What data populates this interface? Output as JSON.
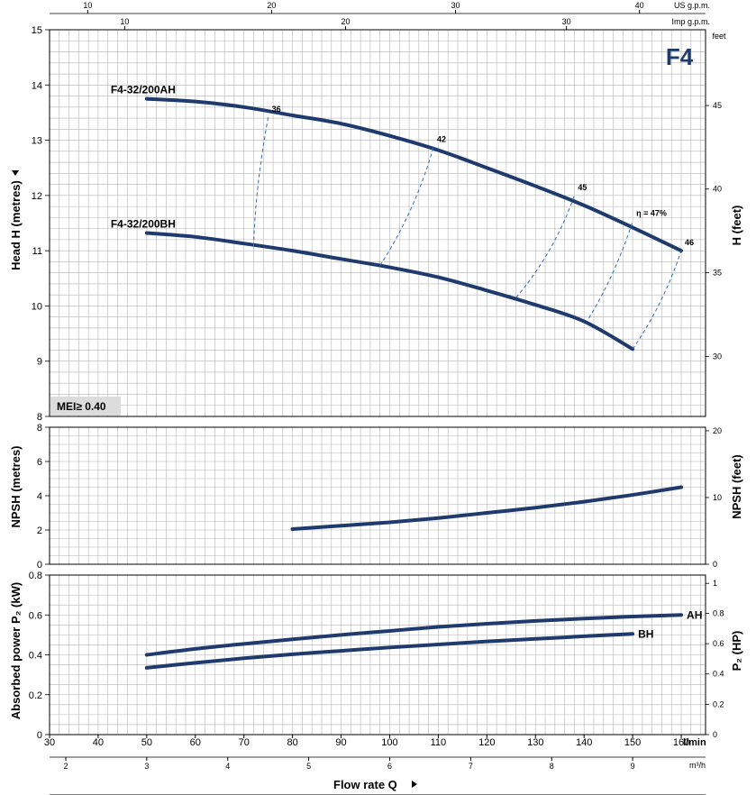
{
  "chart_data": [
    {
      "type": "line",
      "panel": "head",
      "model_label": "F4",
      "ylabel": "Head H  (metres)",
      "ylabel_right": "H  (feet)",
      "right_unit": "feet",
      "ylim": [
        8,
        15
      ],
      "yticks": [
        "8",
        "9",
        "10",
        "11",
        "12",
        "13",
        "14",
        "15"
      ],
      "yticks_right": [
        "30",
        "35",
        "40",
        "45"
      ],
      "series": [
        {
          "name": "F4-32/200AH",
          "x": [
            50,
            60,
            70,
            80,
            90,
            100,
            110,
            120,
            130,
            140,
            150,
            160
          ],
          "y": [
            13.75,
            13.7,
            13.6,
            13.45,
            13.3,
            13.08,
            12.82,
            12.5,
            12.17,
            11.82,
            11.42,
            11.0
          ]
        },
        {
          "name": "F4-32/200BH",
          "x": [
            50,
            60,
            70,
            80,
            90,
            100,
            110,
            120,
            130,
            140,
            150
          ],
          "y": [
            11.32,
            11.25,
            11.13,
            11.0,
            10.85,
            10.7,
            10.52,
            10.28,
            10.02,
            9.72,
            9.22
          ]
        }
      ],
      "efficiency_lines": [
        {
          "label": "36",
          "x_top": 75,
          "y_top": 13.42,
          "x_bottom": 72,
          "y_bottom": 11.08
        },
        {
          "label": "42",
          "x_top": 109,
          "y_top": 12.87,
          "x_bottom": 98,
          "y_bottom": 10.73
        },
        {
          "label": "45",
          "x_top": 138,
          "y_top": 12.0,
          "x_bottom": 126,
          "y_bottom": 10.15
        },
        {
          "label": "η = 47%",
          "x_top": 150,
          "y_top": 11.53,
          "x_bottom": 141,
          "y_bottom": 9.78
        },
        {
          "label": "46",
          "x_top": 160,
          "y_top": 11.0,
          "x_bottom": 150,
          "y_bottom": 9.22
        }
      ],
      "annotation": "MEI≥ 0.40"
    },
    {
      "type": "line",
      "panel": "npsh",
      "ylabel": "NPSH  (metres)",
      "ylabel_right": "NPSH  (feet)",
      "ylim": [
        0,
        8
      ],
      "yticks": [
        "0",
        "2",
        "4",
        "6",
        "8"
      ],
      "yticks_right": [
        "0",
        "10",
        "20"
      ],
      "series": [
        {
          "name": "",
          "x": [
            80,
            90,
            100,
            110,
            120,
            130,
            140,
            150,
            160
          ],
          "y": [
            2.05,
            2.25,
            2.45,
            2.7,
            3.0,
            3.3,
            3.65,
            4.05,
            4.5
          ]
        }
      ]
    },
    {
      "type": "line",
      "panel": "power",
      "ylabel": "Absorbed power  P₂  (kW)",
      "ylabel_right": "P₂  (HP)",
      "ylim": [
        0,
        0.8
      ],
      "yticks": [
        "0",
        "0.2",
        "0.4",
        "0.6",
        "0.8"
      ],
      "yticks_right": [
        "0",
        "0.2",
        "0.4",
        "0.6",
        "0.8",
        "1"
      ],
      "series": [
        {
          "name": "AH",
          "x": [
            50,
            60,
            70,
            80,
            90,
            100,
            110,
            120,
            130,
            140,
            150,
            160
          ],
          "y": [
            0.4,
            0.43,
            0.455,
            0.478,
            0.5,
            0.52,
            0.54,
            0.556,
            0.57,
            0.582,
            0.592,
            0.6
          ]
        },
        {
          "name": "BH",
          "x": [
            50,
            60,
            70,
            80,
            90,
            100,
            110,
            120,
            130,
            140,
            150
          ],
          "y": [
            0.335,
            0.36,
            0.383,
            0.403,
            0.42,
            0.437,
            0.452,
            0.467,
            0.48,
            0.493,
            0.505
          ]
        }
      ]
    }
  ],
  "axes": {
    "x_lmin": {
      "unit": "l/min",
      "xlim": [
        30,
        165
      ],
      "ticks": [
        "30",
        "40",
        "50",
        "60",
        "70",
        "80",
        "90",
        "100",
        "110",
        "120",
        "130",
        "140",
        "150",
        "160"
      ]
    },
    "x_m3h": {
      "unit": "m³/h",
      "ticks": [
        "2",
        "3",
        "4",
        "5",
        "6",
        "7",
        "8",
        "9"
      ]
    },
    "x_usgpm": {
      "unit": "US g.p.m.",
      "ticks": [
        "10",
        "20",
        "30",
        "40"
      ]
    },
    "x_impgpm": {
      "unit": "Imp g.p.m.",
      "ticks": [
        "10",
        "20",
        "30"
      ]
    },
    "xlabel": "Flow rate  Q"
  },
  "colors": {
    "curve": "#1f3b6e",
    "efficiency": "#2f6fb5",
    "grid": "#b4b4b4",
    "background": "#ffffff",
    "model_label": "#1f3b6e",
    "annotation_bg": "#dcdcdc"
  },
  "icons": {
    "arrow": "triangle-right-icon",
    "arrow_up": "triangle-up-icon"
  }
}
